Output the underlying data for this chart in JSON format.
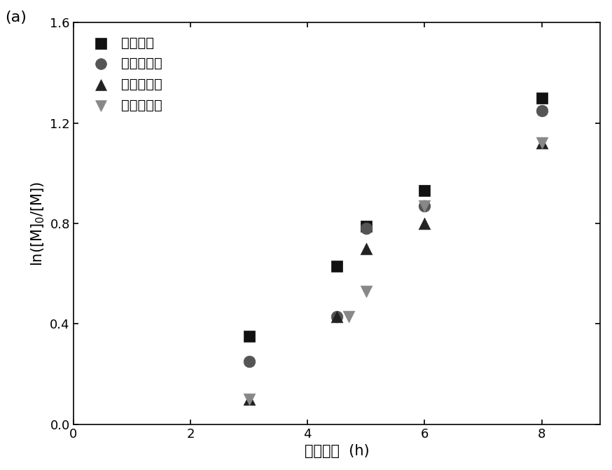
{
  "series": [
    {
      "label": "首次使用",
      "x": [
        3.0,
        4.5,
        5.0,
        6.0,
        8.0
      ],
      "y": [
        0.35,
        0.63,
        0.79,
        0.93,
        1.3
      ],
      "marker": "s",
      "color": "#111111",
      "markersize": 12
    },
    {
      "label": "第一次循环",
      "x": [
        3.0,
        4.5,
        5.0,
        6.0,
        8.0
      ],
      "y": [
        0.25,
        0.43,
        0.78,
        0.87,
        1.25
      ],
      "marker": "o",
      "color": "#555555",
      "markersize": 12
    },
    {
      "label": "第二次循环",
      "x": [
        3.0,
        4.5,
        5.0,
        6.0,
        8.0
      ],
      "y": [
        0.1,
        0.43,
        0.7,
        0.8,
        1.12
      ],
      "marker": "^",
      "color": "#222222",
      "markersize": 12
    },
    {
      "label": "第三次循环",
      "x": [
        3.0,
        4.7,
        5.0,
        6.0,
        8.0
      ],
      "y": [
        0.1,
        0.43,
        0.53,
        0.87,
        1.12
      ],
      "marker": "v",
      "color": "#888888",
      "markersize": 12
    }
  ],
  "xlabel": "反应时间  (h)",
  "ylabel": "ln([M]0/[M])",
  "xlim": [
    0,
    9
  ],
  "ylim": [
    0.0,
    1.6
  ],
  "xticks": [
    0,
    2,
    4,
    6,
    8
  ],
  "yticks": [
    0.0,
    0.4,
    0.8,
    1.2,
    1.6
  ],
  "panel_label": "(a)",
  "legend_fontsize": 14,
  "axis_fontsize": 15,
  "tick_fontsize": 13
}
